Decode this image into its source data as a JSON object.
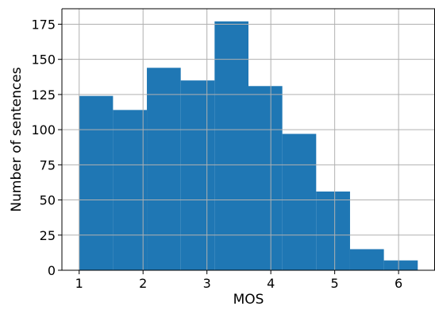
{
  "chart_data": {
    "type": "histogram",
    "title": "",
    "xlabel": "MOS",
    "ylabel": "Number of sentences",
    "bin_edges": [
      1.0,
      1.53,
      2.06,
      2.59,
      3.12,
      3.65,
      4.18,
      4.71,
      5.24,
      5.77,
      6.3
    ],
    "values": [
      124,
      114,
      144,
      135,
      177,
      131,
      97,
      56,
      15,
      7
    ],
    "xlim": [
      0.73,
      6.57
    ],
    "ylim": [
      0,
      186
    ],
    "xticks": [
      1,
      2,
      3,
      4,
      5,
      6
    ],
    "xtick_labels": [
      "1",
      "2",
      "3",
      "4",
      "5",
      "6"
    ],
    "yticks": [
      0,
      25,
      50,
      75,
      100,
      125,
      150,
      175
    ],
    "ytick_labels": [
      "0",
      "25",
      "50",
      "75",
      "100",
      "125",
      "150",
      "175"
    ],
    "grid": true,
    "colors": {
      "bar": "#1f77b4",
      "grid": "#b0b0b0",
      "axis": "#000000"
    }
  }
}
